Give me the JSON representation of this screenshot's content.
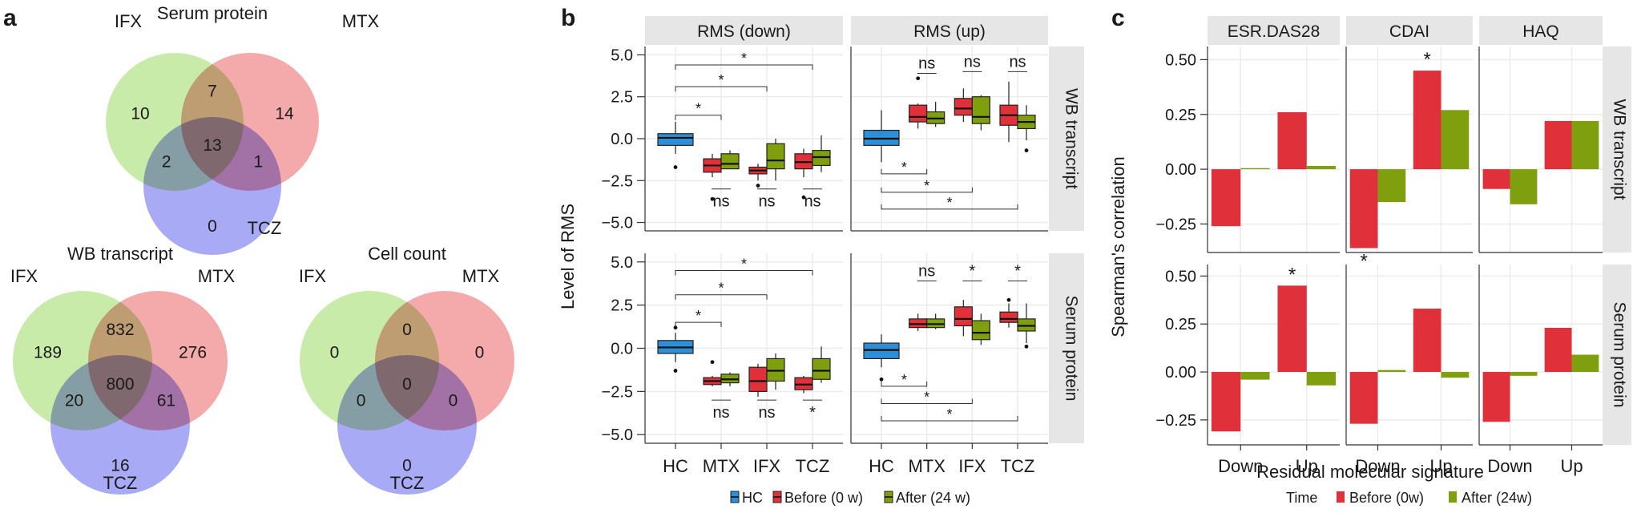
{
  "panel_labels": {
    "a": "a",
    "b": "b",
    "c": "c"
  },
  "colors": {
    "hc": "#2e8fd8",
    "before": "#e0303a",
    "after": "#7f9f0f",
    "venn_a": "#b6e48d",
    "venn_b": "#f08d8f",
    "venn_c": "#8c8ef3"
  },
  "chart_data": [
    {
      "type": "venn",
      "id": "venn-serum",
      "title": "Serum protein",
      "sets": [
        "IFX",
        "MTX",
        "TCZ"
      ],
      "regions": {
        "A": "10",
        "B": "14",
        "C": "0",
        "AB": "7",
        "AC": "2",
        "BC": "1",
        "ABC": "13"
      }
    },
    {
      "type": "venn",
      "id": "venn-wb",
      "title": "WB transcript",
      "sets": [
        "IFX",
        "MTX",
        "TCZ"
      ],
      "regions": {
        "A": "189",
        "B": "276",
        "C": "16",
        "AB": "832",
        "AC": "20",
        "BC": "61",
        "ABC": "800"
      }
    },
    {
      "type": "venn",
      "id": "venn-cell",
      "title": "Cell count",
      "sets": [
        "IFX",
        "MTX",
        "TCZ"
      ],
      "regions": {
        "A": "0",
        "B": "0",
        "C": "0",
        "AB": "0",
        "AC": "0",
        "BC": "0",
        "ABC": "0"
      }
    },
    {
      "type": "boxplot",
      "id": "rms-boxplot",
      "ylabel": "Level of RMS",
      "ylim": [
        -5.5,
        5.5
      ],
      "yticks": [
        5.0,
        2.5,
        0.0,
        -2.5,
        -5.0
      ],
      "ytick_labels": [
        "5.0",
        "2.5",
        "0.0",
        "−2.5",
        "−5.0"
      ],
      "categories": [
        "HC",
        "MTX",
        "IFX",
        "TCZ"
      ],
      "columns": [
        "RMS (down)",
        "RMS (up)"
      ],
      "rows": [
        "WB transcript",
        "Serum protein"
      ],
      "legend": {
        "items": [
          "HC",
          "Before (0 w)",
          "After (24 w)"
        ]
      },
      "panels": [
        {
          "row": 0,
          "col": 0,
          "boxes": [
            {
              "cat": 0,
              "group": "hc",
              "q1": -0.4,
              "med": 0.05,
              "q3": 0.3,
              "lo": -0.9,
              "hi": 1.0,
              "out": [
                -1.7
              ]
            },
            {
              "cat": 1,
              "group": "before",
              "q1": -2.0,
              "med": -1.6,
              "q3": -1.2,
              "lo": -2.3,
              "hi": -0.9,
              "out": [
                -3.6
              ]
            },
            {
              "cat": 1,
              "group": "after",
              "q1": -1.8,
              "med": -1.5,
              "q3": -0.9,
              "lo": -1.8,
              "hi": -0.7,
              "out": []
            },
            {
              "cat": 2,
              "group": "before",
              "q1": -2.1,
              "med": -1.9,
              "q3": -1.7,
              "lo": -2.5,
              "hi": -1.5,
              "out": [
                -2.8
              ]
            },
            {
              "cat": 2,
              "group": "after",
              "q1": -1.8,
              "med": -1.3,
              "q3": -0.3,
              "lo": -2.5,
              "hi": 0.0,
              "out": []
            },
            {
              "cat": 3,
              "group": "before",
              "q1": -1.8,
              "med": -1.4,
              "q3": -0.9,
              "lo": -2.3,
              "hi": -0.6,
              "out": [
                -3.5
              ]
            },
            {
              "cat": 3,
              "group": "after",
              "q1": -1.6,
              "med": -1.1,
              "q3": -0.7,
              "lo": -2.0,
              "hi": 0.2,
              "out": []
            }
          ],
          "brackets": [
            {
              "x1": 0,
              "x2": 1,
              "y": 1.4,
              "label": "*"
            },
            {
              "x1": 0,
              "x2": 2,
              "y": 3.1,
              "label": "*"
            },
            {
              "x1": 0,
              "x2": 3,
              "y": 4.4,
              "label": "*"
            }
          ],
          "pair_labels": [
            {
              "cat": 1,
              "y": -3.0,
              "label": "ns",
              "pos": "below"
            },
            {
              "cat": 2,
              "y": -3.0,
              "label": "ns",
              "pos": "below"
            },
            {
              "cat": 3,
              "y": -3.0,
              "label": "ns",
              "pos": "below"
            }
          ]
        },
        {
          "row": 0,
          "col": 1,
          "boxes": [
            {
              "cat": 0,
              "group": "hc",
              "q1": -0.4,
              "med": 0.0,
              "q3": 0.5,
              "lo": -1.4,
              "hi": 1.7,
              "out": []
            },
            {
              "cat": 1,
              "group": "before",
              "q1": 1.0,
              "med": 1.3,
              "q3": 2.0,
              "lo": 0.6,
              "hi": 2.1,
              "out": [
                3.6
              ]
            },
            {
              "cat": 1,
              "group": "after",
              "q1": 0.9,
              "med": 1.2,
              "q3": 1.6,
              "lo": 0.7,
              "hi": 2.2,
              "out": []
            },
            {
              "cat": 2,
              "group": "before",
              "q1": 1.4,
              "med": 1.8,
              "q3": 2.4,
              "lo": 1.0,
              "hi": 3.0,
              "out": []
            },
            {
              "cat": 2,
              "group": "after",
              "q1": 0.9,
              "med": 1.3,
              "q3": 2.5,
              "lo": 0.5,
              "hi": 2.6,
              "out": []
            },
            {
              "cat": 3,
              "group": "before",
              "q1": 0.8,
              "med": 1.4,
              "q3": 2.0,
              "lo": -0.2,
              "hi": 3.4,
              "out": []
            },
            {
              "cat": 3,
              "group": "after",
              "q1": 0.6,
              "med": 1.0,
              "q3": 1.4,
              "lo": -0.1,
              "hi": 2.0,
              "out": [
                -0.7
              ]
            }
          ],
          "brackets": [
            {
              "x1": 0,
              "x2": 1,
              "y": -2.1,
              "label": "*",
              "dir": "down"
            },
            {
              "x1": 0,
              "x2": 2,
              "y": -3.2,
              "label": "*",
              "dir": "down"
            },
            {
              "x1": 0,
              "x2": 3,
              "y": -4.2,
              "label": "*",
              "dir": "down"
            }
          ],
          "pair_labels": [
            {
              "cat": 1,
              "y": 3.9,
              "label": "ns",
              "pos": "above"
            },
            {
              "cat": 2,
              "y": 4.0,
              "label": "ns",
              "pos": "above"
            },
            {
              "cat": 3,
              "y": 4.0,
              "label": "ns",
              "pos": "above"
            }
          ]
        },
        {
          "row": 1,
          "col": 0,
          "boxes": [
            {
              "cat": 0,
              "group": "hc",
              "q1": -0.3,
              "med": 0.05,
              "q3": 0.45,
              "lo": -0.8,
              "hi": 0.9,
              "out": [
                1.2,
                -1.3
              ]
            },
            {
              "cat": 1,
              "group": "before",
              "q1": -2.1,
              "med": -1.9,
              "q3": -1.7,
              "lo": -2.2,
              "hi": -1.6,
              "out": [
                -0.8
              ]
            },
            {
              "cat": 1,
              "group": "after",
              "q1": -2.0,
              "med": -1.8,
              "q3": -1.5,
              "lo": -2.2,
              "hi": -1.4,
              "out": []
            },
            {
              "cat": 2,
              "group": "before",
              "q1": -2.5,
              "med": -1.9,
              "q3": -1.1,
              "lo": -2.8,
              "hi": -0.9,
              "out": []
            },
            {
              "cat": 2,
              "group": "after",
              "q1": -1.9,
              "med": -1.3,
              "q3": -0.6,
              "lo": -2.4,
              "hi": -0.3,
              "out": []
            },
            {
              "cat": 3,
              "group": "before",
              "q1": -2.4,
              "med": -2.1,
              "q3": -1.7,
              "lo": -2.6,
              "hi": -1.6,
              "out": []
            },
            {
              "cat": 3,
              "group": "after",
              "q1": -1.8,
              "med": -1.3,
              "q3": -0.6,
              "lo": -2.0,
              "hi": 0.1,
              "out": []
            }
          ],
          "brackets": [
            {
              "x1": 0,
              "x2": 1,
              "y": 1.5,
              "label": "*"
            },
            {
              "x1": 0,
              "x2": 2,
              "y": 3.1,
              "label": "*"
            },
            {
              "x1": 0,
              "x2": 3,
              "y": 4.5,
              "label": "*"
            }
          ],
          "pair_labels": [
            {
              "cat": 1,
              "y": -3.0,
              "label": "ns",
              "pos": "below"
            },
            {
              "cat": 2,
              "y": -3.0,
              "label": "ns",
              "pos": "below"
            },
            {
              "cat": 3,
              "y": -3.0,
              "label": "*",
              "pos": "below"
            }
          ]
        },
        {
          "row": 1,
          "col": 1,
          "boxes": [
            {
              "cat": 0,
              "group": "hc",
              "q1": -0.6,
              "med": -0.1,
              "q3": 0.3,
              "lo": -1.1,
              "hi": 0.8,
              "out": [
                -1.8
              ]
            },
            {
              "cat": 1,
              "group": "before",
              "q1": 1.2,
              "med": 1.4,
              "q3": 1.7,
              "lo": 1.0,
              "hi": 2.0,
              "out": []
            },
            {
              "cat": 1,
              "group": "after",
              "q1": 1.2,
              "med": 1.4,
              "q3": 1.7,
              "lo": 1.1,
              "hi": 2.0,
              "out": []
            },
            {
              "cat": 2,
              "group": "before",
              "q1": 1.3,
              "med": 1.7,
              "q3": 2.4,
              "lo": 0.7,
              "hi": 2.8,
              "out": []
            },
            {
              "cat": 2,
              "group": "after",
              "q1": 0.5,
              "med": 0.9,
              "q3": 1.6,
              "lo": 0.2,
              "hi": 2.0,
              "out": []
            },
            {
              "cat": 3,
              "group": "before",
              "q1": 1.5,
              "med": 1.7,
              "q3": 2.1,
              "lo": 1.2,
              "hi": 2.6,
              "out": [
                2.8
              ]
            },
            {
              "cat": 3,
              "group": "after",
              "q1": 1.0,
              "med": 1.3,
              "q3": 1.7,
              "lo": 0.3,
              "hi": 2.6,
              "out": [
                0.1
              ]
            }
          ],
          "brackets": [
            {
              "x1": 0,
              "x2": 1,
              "y": -2.2,
              "label": "*",
              "dir": "down"
            },
            {
              "x1": 0,
              "x2": 2,
              "y": -3.2,
              "label": "*",
              "dir": "down"
            },
            {
              "x1": 0,
              "x2": 3,
              "y": -4.2,
              "label": "*",
              "dir": "down"
            }
          ],
          "pair_labels": [
            {
              "cat": 1,
              "y": 3.9,
              "label": "ns",
              "pos": "above"
            },
            {
              "cat": 2,
              "y": 3.9,
              "label": "*",
              "pos": "above"
            },
            {
              "cat": 3,
              "y": 3.9,
              "label": "*",
              "pos": "above"
            }
          ]
        }
      ]
    },
    {
      "type": "bar",
      "id": "spearman-bars",
      "title": "",
      "xlabel": "Residual molecular signature",
      "ylabel": "Spearman's correlation",
      "ylim": [
        -0.38,
        0.56
      ],
      "yticks": [
        0.5,
        0.25,
        0.0,
        -0.25
      ],
      "ytick_labels": [
        "0.50",
        "0.25",
        "0.00",
        "−0.25"
      ],
      "categories": [
        "Down",
        "Up"
      ],
      "columns": [
        "ESR.DAS28",
        "CDAI",
        "HAQ"
      ],
      "rows": [
        "WB transcript",
        "Serum protein"
      ],
      "legend": {
        "title": "Time",
        "items": [
          "Before (0w)",
          "After (24w)"
        ]
      },
      "panels": [
        {
          "row": 0,
          "col": 0,
          "before": [
            -0.26,
            0.26
          ],
          "after": [
            0.005,
            0.015
          ],
          "stars": []
        },
        {
          "row": 0,
          "col": 1,
          "before": [
            -0.36,
            0.45
          ],
          "after": [
            -0.15,
            0.27
          ],
          "stars": [
            {
              "cat": 0,
              "label": "*"
            },
            {
              "cat": 1,
              "label": "*"
            }
          ]
        },
        {
          "row": 0,
          "col": 2,
          "before": [
            -0.09,
            0.22
          ],
          "after": [
            -0.16,
            0.22
          ],
          "stars": []
        },
        {
          "row": 1,
          "col": 0,
          "before": [
            -0.31,
            0.45
          ],
          "after": [
            -0.04,
            -0.07
          ],
          "stars": [
            {
              "cat": 1,
              "label": "*"
            }
          ]
        },
        {
          "row": 1,
          "col": 1,
          "before": [
            -0.27,
            0.33
          ],
          "after": [
            0.01,
            -0.03
          ],
          "stars": []
        },
        {
          "row": 1,
          "col": 2,
          "before": [
            -0.26,
            0.23
          ],
          "after": [
            -0.02,
            0.09
          ],
          "stars": []
        }
      ]
    }
  ]
}
